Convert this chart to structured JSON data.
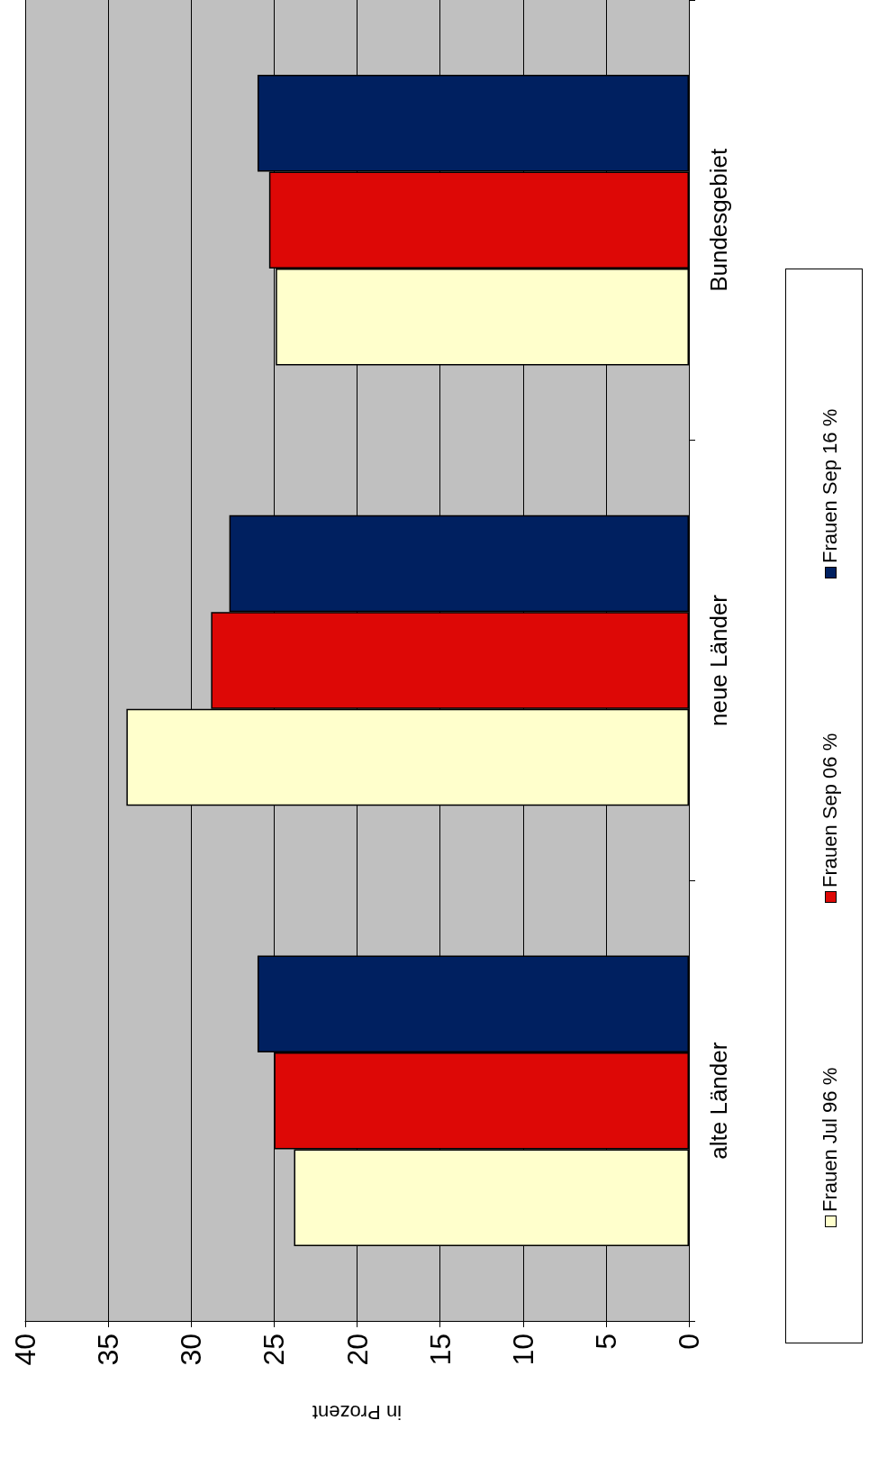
{
  "chart_data": {
    "type": "bar",
    "orientation": "horizontal",
    "xlabel": "in Prozent",
    "categories": [
      "Bundesgebiet",
      "neue Länder",
      "alte Länder"
    ],
    "series": [
      {
        "name": "Frauen Jul 96 %",
        "color": "#ffffcc",
        "values": [
          24.9,
          33.9,
          23.8
        ]
      },
      {
        "name": "Frauen Sep 06 %",
        "color": "#dd0806",
        "values": [
          25.3,
          28.8,
          25.0
        ]
      },
      {
        "name": "Frauen Sep 16 %",
        "color": "#002060",
        "values": [
          26.0,
          27.7,
          26.0
        ]
      }
    ],
    "xlim": [
      40,
      0
    ],
    "xticks": [
      40,
      35,
      30,
      25,
      20,
      15,
      10,
      5,
      0
    ],
    "grid": "x",
    "legend": "right"
  }
}
